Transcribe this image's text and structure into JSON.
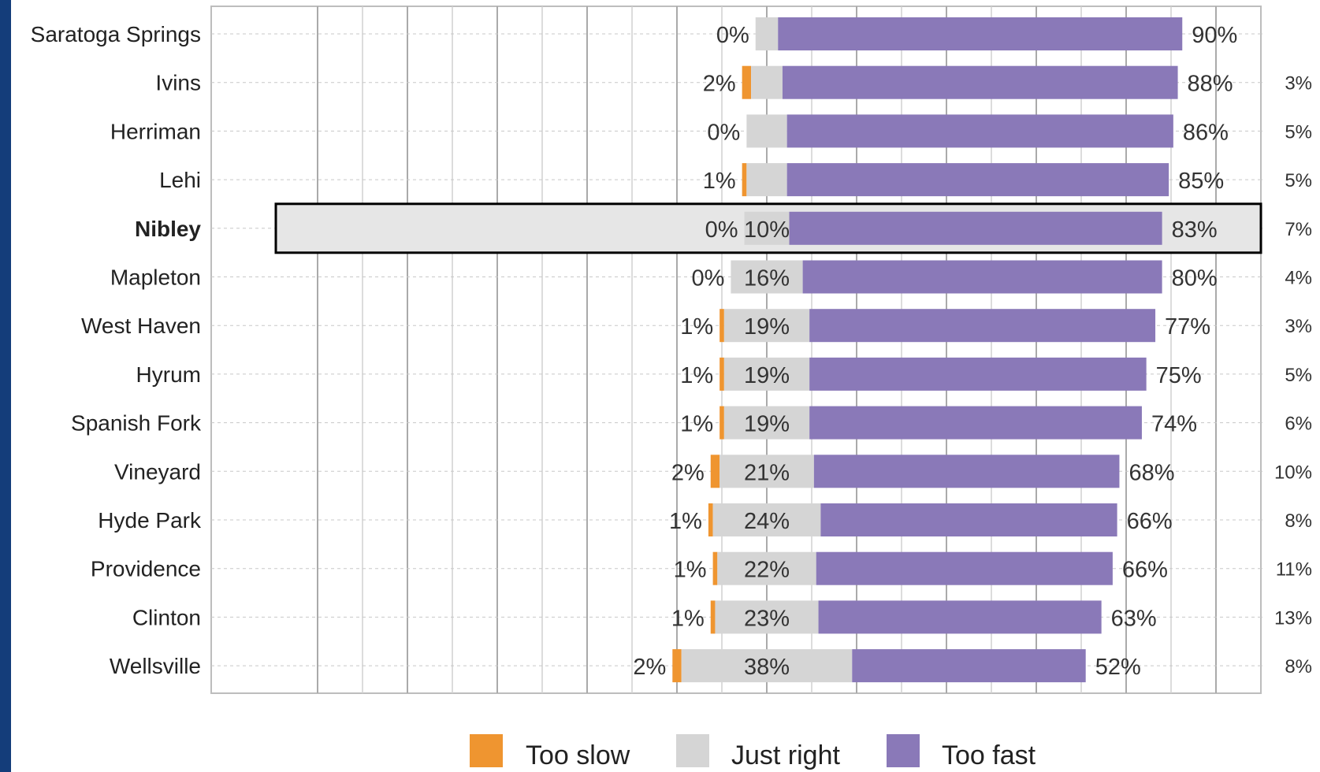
{
  "colors": {
    "too_slow": "#ef9530",
    "just_right": "#d5d5d5",
    "too_fast": "#8a79b8",
    "highlight_fill": "#e6e6e6",
    "edge_bar": "#143d7a"
  },
  "chart_data": {
    "type": "bar",
    "orientation": "horizontal",
    "stacked": true,
    "xlim": [
      -100,
      100
    ],
    "grid": true,
    "legend_position": "bottom",
    "highlighted_category": "Nibley",
    "categories": [
      "Saratoga Springs",
      "Ivins",
      "Herriman",
      "Lehi",
      "Nibley",
      "Mapleton",
      "West Haven",
      "Hyrum",
      "Spanish Fork",
      "Vineyard",
      "Hyde Park",
      "Providence",
      "Clinton",
      "Wellsville"
    ],
    "series": [
      {
        "name": "Too slow",
        "values": [
          0,
          2,
          0,
          1,
          0,
          0,
          1,
          1,
          1,
          2,
          1,
          1,
          1,
          2
        ]
      },
      {
        "name": "Just right",
        "values": [
          5,
          7,
          9,
          9,
          10,
          16,
          19,
          19,
          19,
          21,
          24,
          22,
          23,
          38
        ]
      },
      {
        "name": "Too fast",
        "values": [
          90,
          88,
          86,
          85,
          83,
          80,
          77,
          75,
          74,
          68,
          66,
          66,
          63,
          52
        ]
      }
    ],
    "labels": {
      "too_slow": [
        "0%",
        "2%",
        "0%",
        "1%",
        "0%",
        "0%",
        "1%",
        "1%",
        "1%",
        "2%",
        "1%",
        "1%",
        "1%",
        "2%"
      ],
      "just_right": [
        "",
        "",
        "",
        "",
        "10%",
        "16%",
        "19%",
        "19%",
        "19%",
        "21%",
        "24%",
        "22%",
        "23%",
        "38%"
      ],
      "too_fast": [
        "90%",
        "88%",
        "86%",
        "85%",
        "83%",
        "80%",
        "77%",
        "75%",
        "74%",
        "68%",
        "66%",
        "66%",
        "63%",
        "52%"
      ],
      "right_column": [
        "",
        "3%",
        "5%",
        "5%",
        "7%",
        "4%",
        "3%",
        "5%",
        "6%",
        "10%",
        "8%",
        "11%",
        "13%",
        "8%"
      ]
    }
  },
  "legend": [
    {
      "label": "Too slow",
      "color": "#ef9530"
    },
    {
      "label": "Just right",
      "color": "#d5d5d5"
    },
    {
      "label": "Too fast",
      "color": "#8a79b8"
    }
  ]
}
